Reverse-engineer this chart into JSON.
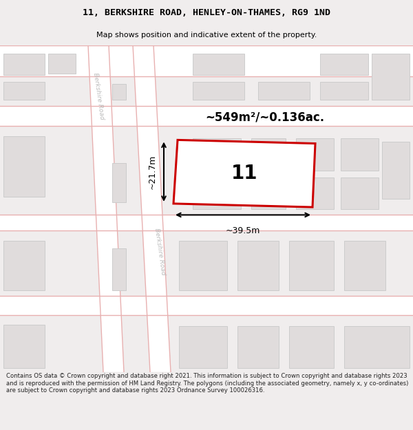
{
  "title_line1": "11, BERKSHIRE ROAD, HENLEY-ON-THAMES, RG9 1ND",
  "title_line2": "Map shows position and indicative extent of the property.",
  "footer_text": "Contains OS data © Crown copyright and database right 2021. This information is subject to Crown copyright and database rights 2023 and is reproduced with the permission of HM Land Registry. The polygons (including the associated geometry, namely x, y co-ordinates) are subject to Crown copyright and database rights 2023 Ordnance Survey 100026316.",
  "area_label": "~549m²/~0.136ac.",
  "width_label": "~39.5m",
  "height_label": "~21.7m",
  "property_number": "11",
  "bg_color": "#f0eded",
  "map_bg": "#f0eded",
  "road_fill": "#ffffff",
  "road_border": "#e8b0b0",
  "building_fill": "#e0dcdc",
  "building_ec": "#cccccc",
  "property_fill": "#ffffff",
  "property_stroke": "#cc0000",
  "road_label_color": "#bbbbbb",
  "title_color": "#000000",
  "footer_color": "#222222",
  "dim_color": "#000000"
}
